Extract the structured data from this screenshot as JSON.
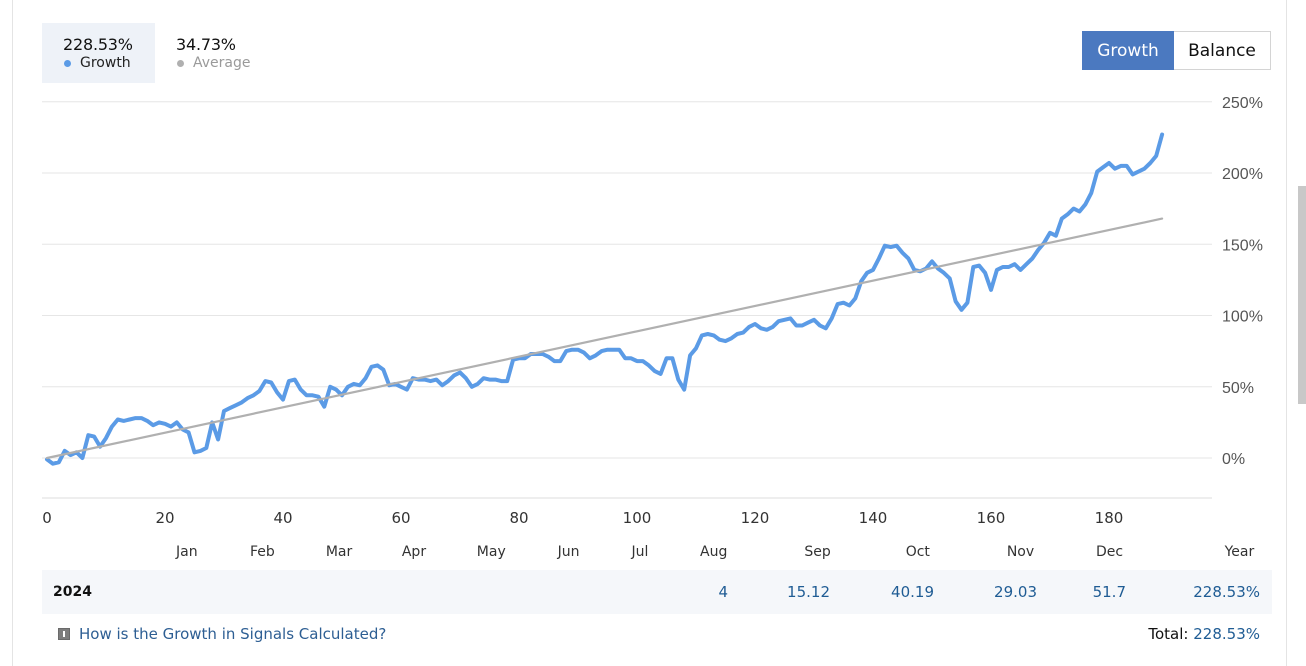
{
  "stats": {
    "growth": {
      "value": "228.53%",
      "label": "Growth",
      "color": "#5b9be6"
    },
    "average": {
      "value": "34.73%",
      "label": "Average",
      "color": "#b0b0b0"
    }
  },
  "toggle": {
    "growth_label": "Growth",
    "balance_label": "Balance",
    "active": "Growth",
    "active_color": "#4b79c0"
  },
  "chart_data": {
    "type": "line",
    "x_ticks": [
      0,
      20,
      40,
      60,
      80,
      100,
      120,
      140,
      160,
      180
    ],
    "y_ticks": [
      "250%",
      "200%",
      "150%",
      "100%",
      "50%",
      "0%"
    ],
    "y_tick_values": [
      250,
      200,
      150,
      100,
      50,
      0
    ],
    "xlim": [
      0,
      196
    ],
    "ylim": [
      -28,
      252
    ],
    "months": [
      {
        "label": "Jan",
        "x": 23.7
      },
      {
        "label": "Feb",
        "x": 36.5
      },
      {
        "label": "Mar",
        "x": 49.5
      },
      {
        "label": "Apr",
        "x": 62.2
      },
      {
        "label": "May",
        "x": 75.3
      },
      {
        "label": "Jun",
        "x": 88.4
      },
      {
        "label": "Jul",
        "x": 100.5
      },
      {
        "label": "Aug",
        "x": 113.0
      },
      {
        "label": "Sep",
        "x": 130.6
      },
      {
        "label": "Oct",
        "x": 147.6
      },
      {
        "label": "Nov",
        "x": 165.0
      },
      {
        "label": "Dec",
        "x": 180.1
      },
      {
        "label": "Year",
        "x": 202.1
      }
    ],
    "series": [
      {
        "name": "Growth",
        "color": "#5b9be6",
        "points": [
          [
            0,
            -1
          ],
          [
            1,
            -4
          ],
          [
            2,
            -3
          ],
          [
            3,
            5
          ],
          [
            4,
            2
          ],
          [
            5,
            4
          ],
          [
            6,
            0
          ],
          [
            7,
            16
          ],
          [
            8,
            15
          ],
          [
            9,
            8
          ],
          [
            10,
            14
          ],
          [
            11,
            22
          ],
          [
            12,
            27
          ],
          [
            13,
            26
          ],
          [
            14,
            27
          ],
          [
            15,
            28
          ],
          [
            16,
            28
          ],
          [
            17,
            26
          ],
          [
            18,
            23
          ],
          [
            19,
            25
          ],
          [
            20,
            24
          ],
          [
            21,
            22
          ],
          [
            22,
            25
          ],
          [
            23,
            20
          ],
          [
            24,
            18
          ],
          [
            25,
            4
          ],
          [
            26,
            5
          ],
          [
            27,
            7
          ],
          [
            28,
            25
          ],
          [
            29,
            13
          ],
          [
            30,
            33
          ],
          [
            31,
            35
          ],
          [
            32,
            37
          ],
          [
            33,
            39
          ],
          [
            34,
            42
          ],
          [
            35,
            44
          ],
          [
            36,
            47
          ],
          [
            37,
            54
          ],
          [
            38,
            53
          ],
          [
            39,
            46
          ],
          [
            40,
            41
          ],
          [
            41,
            54
          ],
          [
            42,
            55
          ],
          [
            43,
            48
          ],
          [
            44,
            44
          ],
          [
            45,
            44
          ],
          [
            46,
            43
          ],
          [
            47,
            36
          ],
          [
            48,
            50
          ],
          [
            49,
            48
          ],
          [
            50,
            44
          ],
          [
            51,
            50
          ],
          [
            52,
            52
          ],
          [
            53,
            51
          ],
          [
            54,
            56
          ],
          [
            55,
            64
          ],
          [
            56,
            65
          ],
          [
            57,
            62
          ],
          [
            58,
            51
          ],
          [
            59,
            52
          ],
          [
            60,
            50
          ],
          [
            61,
            48
          ],
          [
            62,
            56
          ],
          [
            63,
            55
          ],
          [
            64,
            55
          ],
          [
            65,
            54
          ],
          [
            66,
            55
          ],
          [
            67,
            51
          ],
          [
            68,
            54
          ],
          [
            69,
            58
          ],
          [
            70,
            60
          ],
          [
            71,
            56
          ],
          [
            72,
            50
          ],
          [
            73,
            52
          ],
          [
            74,
            56
          ],
          [
            75,
            55
          ],
          [
            76,
            55
          ],
          [
            77,
            54
          ],
          [
            78,
            54
          ],
          [
            79,
            69
          ],
          [
            80,
            70
          ],
          [
            81,
            70
          ],
          [
            82,
            73
          ],
          [
            83,
            73
          ],
          [
            84,
            73
          ],
          [
            85,
            71
          ],
          [
            86,
            68
          ],
          [
            87,
            68
          ],
          [
            88,
            75
          ],
          [
            89,
            76
          ],
          [
            90,
            76
          ],
          [
            91,
            74
          ],
          [
            92,
            70
          ],
          [
            93,
            72
          ],
          [
            94,
            75
          ],
          [
            95,
            76
          ],
          [
            96,
            76
          ],
          [
            97,
            76
          ],
          [
            98,
            70
          ],
          [
            99,
            70
          ],
          [
            100,
            68
          ],
          [
            101,
            68
          ],
          [
            102,
            65
          ],
          [
            103,
            61
          ],
          [
            104,
            59
          ],
          [
            105,
            70
          ],
          [
            106,
            70
          ],
          [
            107,
            55
          ],
          [
            108,
            48
          ],
          [
            109,
            72
          ],
          [
            110,
            77
          ],
          [
            111,
            86
          ],
          [
            112,
            87
          ],
          [
            113,
            86
          ],
          [
            114,
            83
          ],
          [
            115,
            82
          ],
          [
            116,
            84
          ],
          [
            117,
            87
          ],
          [
            118,
            88
          ],
          [
            119,
            92
          ],
          [
            120,
            94
          ],
          [
            121,
            91
          ],
          [
            122,
            90
          ],
          [
            123,
            92
          ],
          [
            124,
            96
          ],
          [
            125,
            97
          ],
          [
            126,
            98
          ],
          [
            127,
            93
          ],
          [
            128,
            93
          ],
          [
            129,
            95
          ],
          [
            130,
            97
          ],
          [
            131,
            93
          ],
          [
            132,
            91
          ],
          [
            133,
            98
          ],
          [
            134,
            108
          ],
          [
            135,
            109
          ],
          [
            136,
            107
          ],
          [
            137,
            112
          ],
          [
            138,
            124
          ],
          [
            139,
            130
          ],
          [
            140,
            132
          ],
          [
            141,
            140
          ],
          [
            142,
            149
          ],
          [
            143,
            148
          ],
          [
            144,
            149
          ],
          [
            145,
            144
          ],
          [
            146,
            140
          ],
          [
            147,
            132
          ],
          [
            148,
            131
          ],
          [
            149,
            133
          ],
          [
            150,
            138
          ],
          [
            151,
            133
          ],
          [
            152,
            130
          ],
          [
            153,
            126
          ],
          [
            154,
            110
          ],
          [
            155,
            104
          ],
          [
            156,
            109
          ],
          [
            157,
            134
          ],
          [
            158,
            135
          ],
          [
            159,
            130
          ],
          [
            160,
            118
          ],
          [
            161,
            132
          ],
          [
            162,
            134
          ],
          [
            163,
            134
          ],
          [
            164,
            136
          ],
          [
            165,
            132
          ],
          [
            166,
            136
          ],
          [
            167,
            140
          ],
          [
            168,
            146
          ],
          [
            169,
            151
          ],
          [
            170,
            158
          ],
          [
            171,
            156
          ],
          [
            172,
            168
          ],
          [
            173,
            171
          ],
          [
            174,
            175
          ],
          [
            175,
            173
          ],
          [
            176,
            178
          ],
          [
            177,
            186
          ],
          [
            178,
            201
          ],
          [
            179,
            204
          ],
          [
            180,
            207
          ],
          [
            181,
            203
          ],
          [
            182,
            205
          ],
          [
            183,
            205
          ],
          [
            184,
            199
          ],
          [
            185,
            201
          ],
          [
            186,
            203
          ],
          [
            187,
            207
          ],
          [
            188,
            212
          ],
          [
            189,
            227
          ]
        ]
      },
      {
        "name": "Average",
        "color": "#b0b0b0",
        "points": [
          [
            0,
            0
          ],
          [
            189,
            168
          ]
        ]
      }
    ]
  },
  "year_row": {
    "year": "2024",
    "cells": [
      {
        "month": "Aug",
        "value": "4"
      },
      {
        "month": "Sep",
        "value": "15.12"
      },
      {
        "month": "Oct",
        "value": "40.19"
      },
      {
        "month": "Nov",
        "value": "29.03"
      },
      {
        "month": "Dec",
        "value": "51.7"
      },
      {
        "month": "Year",
        "value": "228.53%"
      }
    ]
  },
  "footer": {
    "link_text": "How is the Growth in Signals Calculated?",
    "total_label": "Total:",
    "total_value": "228.53%"
  }
}
